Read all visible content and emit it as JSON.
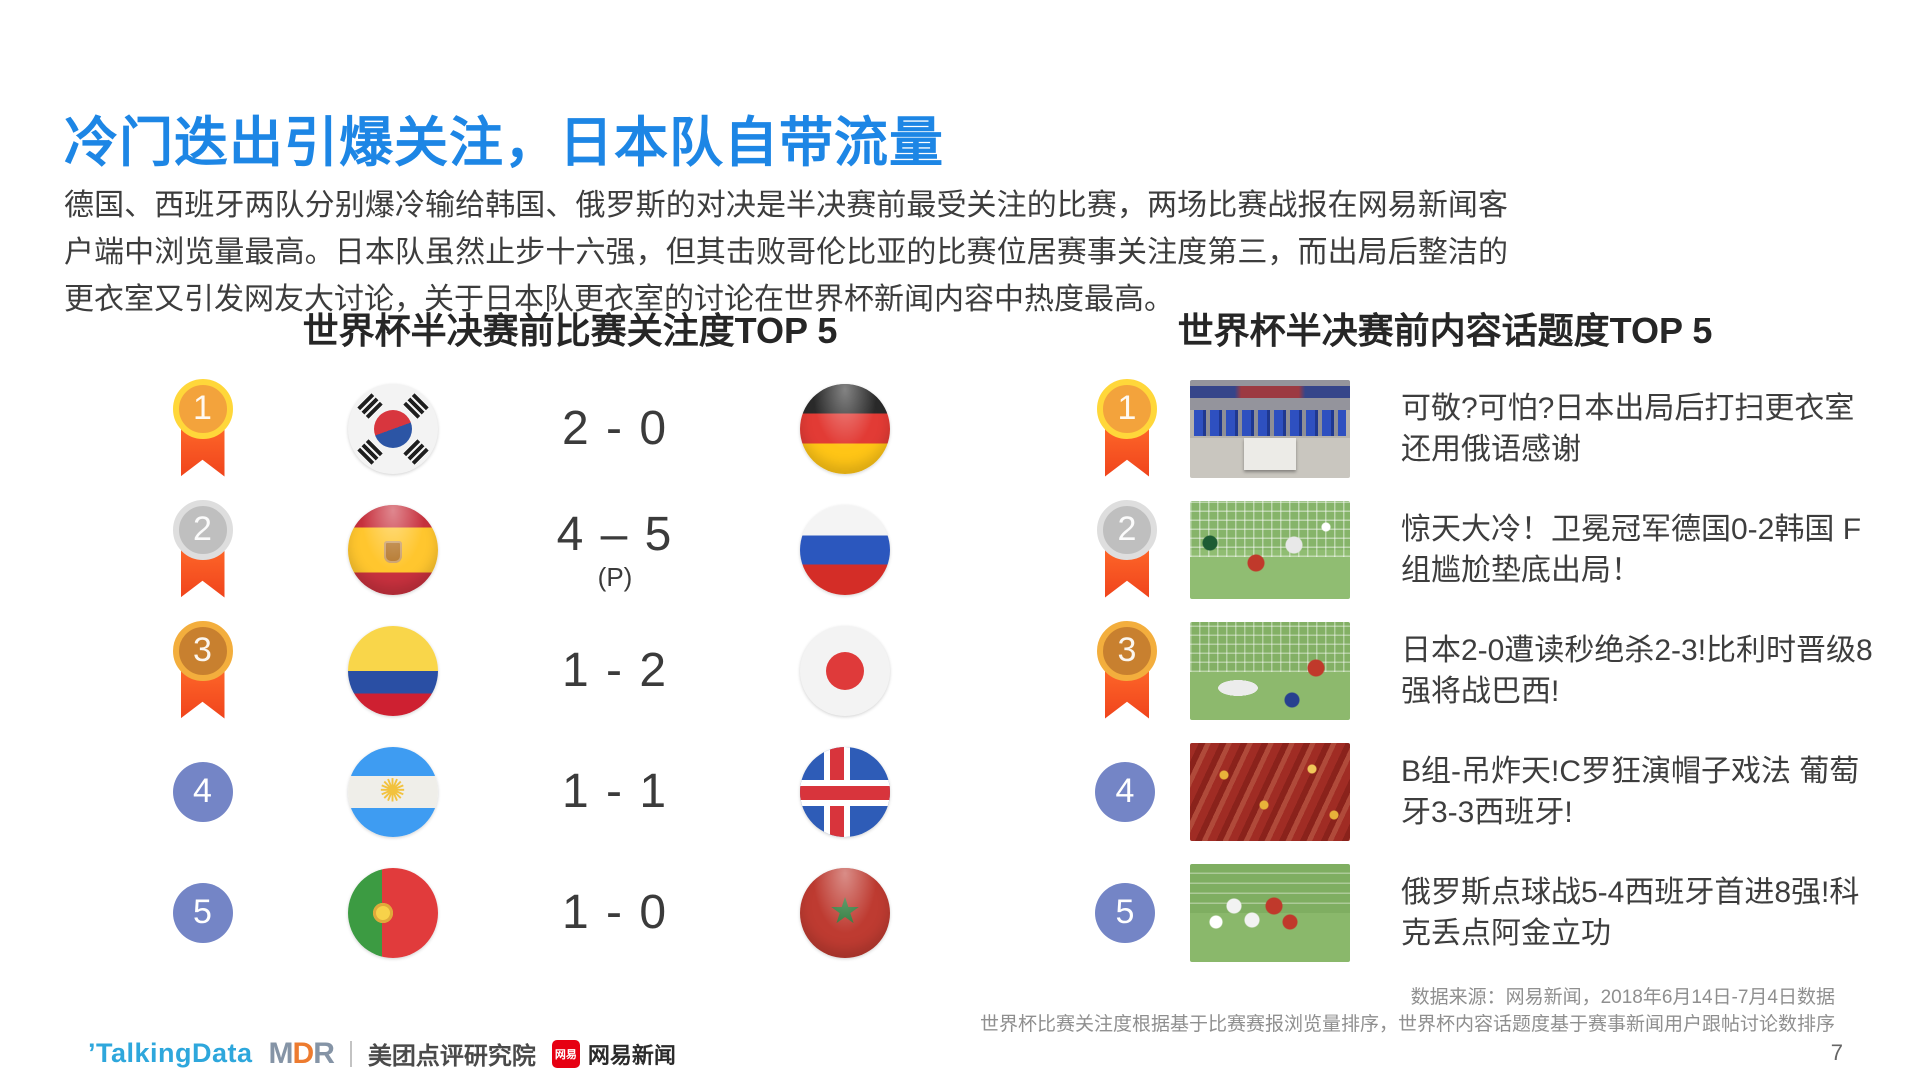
{
  "slide": {
    "title": "冷门迭出引爆关注，日本队自带流量",
    "body": "德国、西班牙两队分别爆冷输给韩国、俄罗斯的对决是半决赛前最受关注的比赛，两场比赛战报在网易新闻客户端中浏览量最高。日本队虽然止步十六强，但其击败哥伦比亚的比赛位居赛事关注度第三，而出局后整洁的更衣室又引发网友大讨论，关于日本队更衣室的讨论在世界杯新闻内容中热度最高。",
    "page_number": "7"
  },
  "colors": {
    "title_blue": "#1d86e5",
    "medal_gold": "#ffd73a",
    "medal_silver": "#dedede",
    "medal_bronze": "#f3ae3d",
    "ribbon_orange": "#ff5a20",
    "rank_badge_blue": "#7485c6"
  },
  "left_panel": {
    "title": "世界杯半决赛前比赛关注度TOP 5",
    "rows": [
      {
        "rank": "1",
        "team_a": "south-korea",
        "score": "2 - 0",
        "score_note": "",
        "team_b": "germany"
      },
      {
        "rank": "2",
        "team_a": "spain",
        "score": "4 – 5",
        "score_note": "(P)",
        "team_b": "russia"
      },
      {
        "rank": "3",
        "team_a": "colombia",
        "score": "1 - 2",
        "score_note": "",
        "team_b": "japan"
      },
      {
        "rank": "4",
        "team_a": "argentina",
        "score": "1 - 1",
        "score_note": "",
        "team_b": "iceland"
      },
      {
        "rank": "5",
        "team_a": "portugal",
        "score": "1 - 0",
        "score_note": "",
        "team_b": "morocco"
      }
    ]
  },
  "right_panel": {
    "title": "世界杯半决赛前内容话题度TOP 5",
    "items": [
      {
        "rank": "1",
        "thumbnail": "japan-locker-room",
        "headline": "可敬?可怕?日本出局后打扫更衣室 还用俄语感谢"
      },
      {
        "rank": "2",
        "thumbnail": "germany-korea-goal",
        "headline": "惊天大冷！卫冕冠军德国0-2韩国 F组尴尬垫底出局！"
      },
      {
        "rank": "3",
        "thumbnail": "japan-belgium-match",
        "headline": "日本2-0遭读秒绝杀2-3!比利时晋级8强将战巴西!"
      },
      {
        "rank": "4",
        "thumbnail": "portugal-fans-crowd",
        "headline": "B组-吊炸天!C罗狂演帽子戏法 葡萄牙3-3西班牙!"
      },
      {
        "rank": "5",
        "thumbnail": "russia-celebration",
        "headline": "俄罗斯点球战5-4西班牙首进8强!科克丢点阿金立功"
      }
    ]
  },
  "footer": {
    "source_line1": "数据来源：网易新闻，2018年6月14日-7月4日数据",
    "source_line2": "世界杯比赛关注度根据基于比赛赛报浏览量排序，世界杯内容话题度基于赛事新闻用户跟帖讨论数排序",
    "logos": {
      "talkingdata": "’TalkingData",
      "mdr": {
        "m": "M",
        "d": "D",
        "r": "R"
      },
      "meituan_research": "美团点评研究院",
      "netease_badge": "网易",
      "netease_news": "网易新闻"
    }
  }
}
